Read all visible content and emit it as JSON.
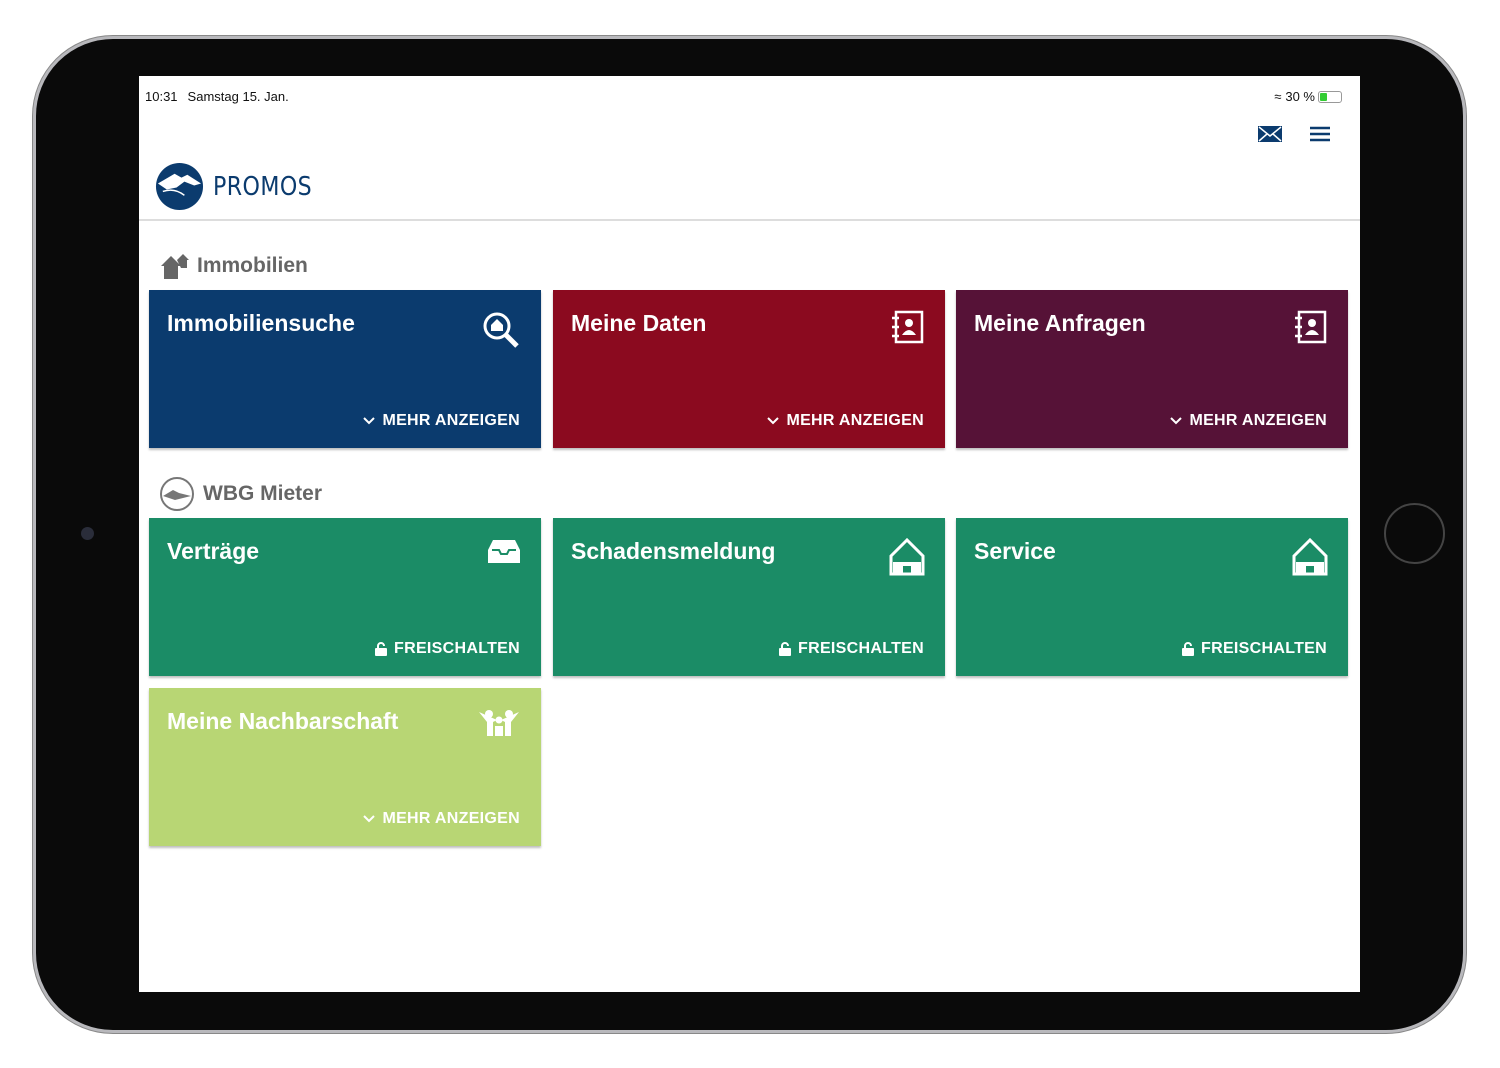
{
  "status": {
    "time": "10:31",
    "date": "Samstag 15. Jan.",
    "battery": "30 %"
  },
  "header": {
    "brand": "PROMOS",
    "icons": [
      "mail-icon",
      "menu-icon"
    ]
  },
  "colors": {
    "blue": "#0b3b6e",
    "red": "#8b0a1f",
    "purple": "#561237",
    "green": "#1b8c66",
    "lightgreen": "#b8d674"
  },
  "sections": [
    {
      "title": "Immobilien",
      "cards": [
        {
          "title": "Immobiliensuche",
          "action": "MEHR ANZEIGEN",
          "icon": "search-home-icon"
        },
        {
          "title": "Meine Daten",
          "action": "MEHR ANZEIGEN",
          "icon": "contact-book-icon"
        },
        {
          "title": "Meine Anfragen",
          "action": "MEHR ANZEIGEN",
          "icon": "contact-book-icon"
        }
      ]
    },
    {
      "title": "WBG Mieter",
      "cards": [
        {
          "title": "Verträge",
          "action": "FREISCHALTEN",
          "icon": "inbox-icon"
        },
        {
          "title": "Schadensmeldung",
          "action": "FREISCHALTEN",
          "icon": "house-icon"
        },
        {
          "title": "Service",
          "action": "FREISCHALTEN",
          "icon": "house-icon"
        },
        {
          "title": "Meine Nachbarschaft",
          "action": "MEHR ANZEIGEN",
          "icon": "people-icon"
        }
      ]
    }
  ]
}
